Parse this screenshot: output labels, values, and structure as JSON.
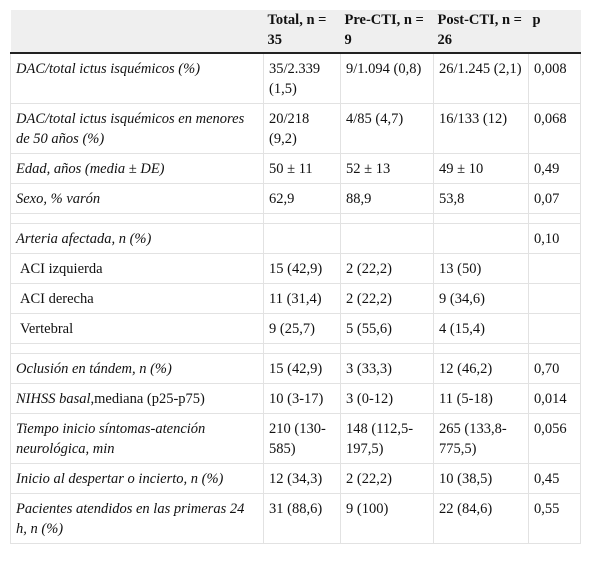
{
  "table": {
    "header": [
      "Total, n = 35",
      "Pre-CTI, n = 9",
      "Post-CTI, n = 26",
      "p"
    ],
    "groups": [
      [
        {
          "label": "DAC/total ictus isquémicos (%)",
          "cells": [
            "35/2.339 (1,5)",
            "9/1.094 (0,8)",
            "26/1.245 (2,1)",
            "0,008"
          ]
        },
        {
          "label": "DAC/total ictus isquémicos en menores de 50 años (%)",
          "cells": [
            "20/218 (9,2)",
            "4/85 (4,7)",
            "16/133 (12)",
            "0,068"
          ]
        },
        {
          "label": "Edad, años (media ± DE)",
          "cells": [
            "50 ± 11",
            "52 ± 13",
            "49 ± 10",
            "0,49"
          ]
        },
        {
          "label": "Sexo, % varón",
          "cells": [
            "62,9",
            "88,9",
            "53,8",
            "0,07"
          ]
        }
      ],
      [
        {
          "label": "Arteria afectada, n (%)",
          "cells": [
            null,
            null,
            null,
            "0,10"
          ]
        },
        {
          "item": "ACI izquierda",
          "cells": [
            "15 (42,9)",
            "2 (22,2)",
            "13 (50)",
            null
          ]
        },
        {
          "item": "ACI derecha",
          "cells": [
            "11 (31,4)",
            "2 (22,2)",
            "9 (34,6)",
            null
          ]
        },
        {
          "item": "Vertebral",
          "cells": [
            "9 (25,7)",
            "5 (55,6)",
            "4 (15,4)",
            null
          ]
        }
      ],
      [
        {
          "label": "Oclusión en tándem, n (%)",
          "cells": [
            "15 (42,9)",
            "3 (33,3)",
            "12 (46,2)",
            "0,70"
          ]
        },
        {
          "label": "NIHSS basal",
          "label_suffix": ",mediana (p25-p75)",
          "cells": [
            "10 (3-17)",
            "3 (0-12)",
            "11 (5-18)",
            "0,014"
          ]
        },
        {
          "label": "Tiempo inicio síntomas-atención neurológica, min",
          "cells": [
            "210 (130-585)",
            "148 (112,5-197,5)",
            "265 (133,8-775,5)",
            "0,056"
          ]
        },
        {
          "label": "Inicio al despertar o incierto, n (%)",
          "cells": [
            "12 (34,3)",
            "2 (22,2)",
            "10 (38,5)",
            "0,45"
          ]
        },
        {
          "label": "Pacientes atendidos en las primeras 24 h, n (%)",
          "cells": [
            "31 (88,6)",
            "9 (100)",
            "22 (84,6)",
            "0,55"
          ]
        }
      ]
    ]
  }
}
